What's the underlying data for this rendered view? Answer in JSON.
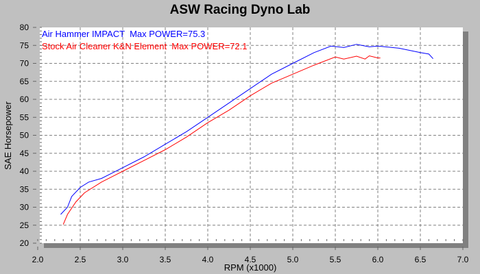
{
  "chart_data": {
    "type": "line",
    "title": "ASW Racing Dyno Lab",
    "xlabel": "RPM (x1000)",
    "ylabel": "SAE Horsepower",
    "xlim": [
      2.0,
      7.0
    ],
    "ylim": [
      20,
      80
    ],
    "xticks": [
      "2.0",
      "2.5",
      "3.0",
      "3.5",
      "4.0",
      "4.5",
      "5.0",
      "5.5",
      "6.0",
      "6.5",
      "7.0"
    ],
    "yticks": [
      "20",
      "25",
      "30",
      "35",
      "40",
      "45",
      "50",
      "55",
      "60",
      "65",
      "70",
      "75",
      "80"
    ],
    "grid": true,
    "legend_position": "top-left",
    "series": [
      {
        "name": "Air Hammer IMPACT  Max POWER=75.3",
        "color": "#0000ff",
        "x": [
          2.27,
          2.35,
          2.4,
          2.5,
          2.6,
          2.75,
          3.0,
          3.25,
          3.5,
          3.75,
          4.0,
          4.25,
          4.5,
          4.75,
          5.0,
          5.25,
          5.45,
          5.6,
          5.75,
          5.9,
          6.0,
          6.25,
          6.5,
          6.6,
          6.65
        ],
        "y": [
          28,
          30,
          33,
          35.5,
          37,
          38,
          41,
          44,
          47.5,
          51,
          55,
          59,
          63,
          67,
          70,
          73,
          74.8,
          74.4,
          75.3,
          74.6,
          74.8,
          74.2,
          73,
          72.6,
          71.3
        ]
      },
      {
        "name": "Stock Air Cleaner K&N Element  Max POWER=72.1",
        "color": "#ff0000",
        "x": [
          2.3,
          2.35,
          2.45,
          2.55,
          2.75,
          3.0,
          3.25,
          3.5,
          3.75,
          4.0,
          4.25,
          4.5,
          4.75,
          5.0,
          5.25,
          5.5,
          5.6,
          5.75,
          5.85,
          5.9,
          6.0,
          6.03
        ],
        "y": [
          25.2,
          28,
          31.5,
          34,
          37,
          40,
          43,
          46,
          49.5,
          53.5,
          57,
          61,
          64.5,
          67,
          69.5,
          71.8,
          71.2,
          72,
          71.2,
          72.1,
          71.5,
          71.5
        ]
      }
    ]
  }
}
